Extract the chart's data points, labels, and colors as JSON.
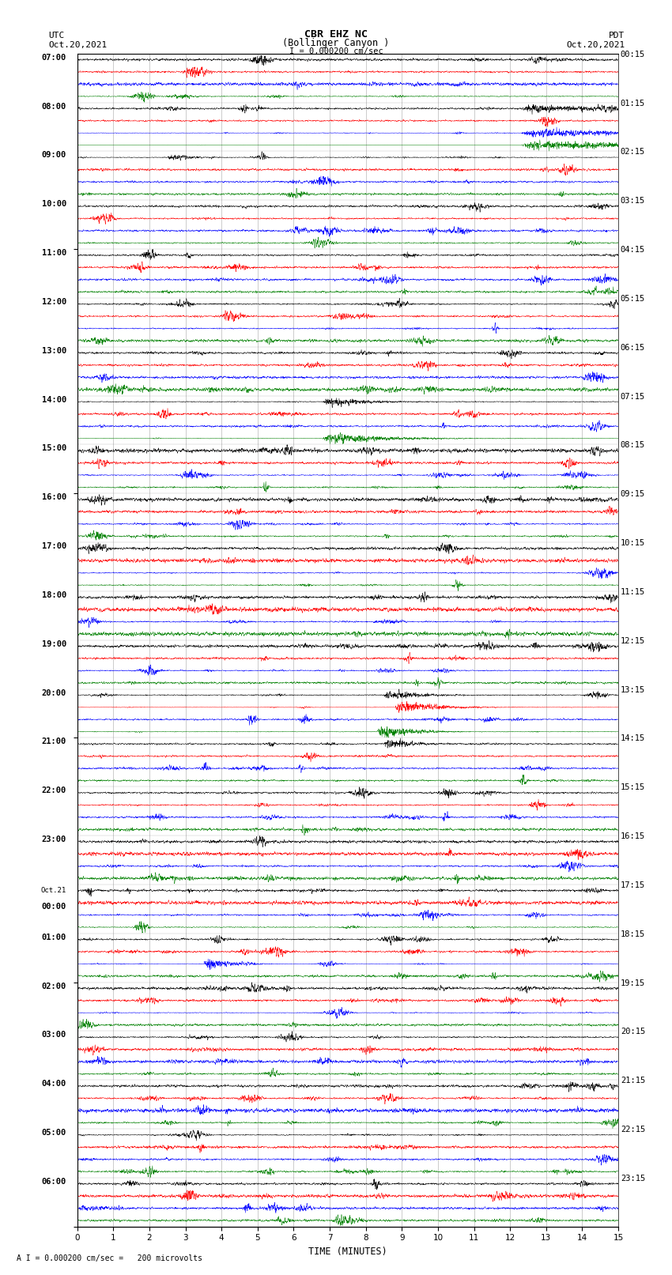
{
  "title_line1": "CBR EHZ NC",
  "title_line2": "(Bollinger Canyon )",
  "scale_label": "I = 0.000200 cm/sec",
  "bottom_label": "A I = 0.000200 cm/sec =   200 microvolts",
  "xlabel": "TIME (MINUTES)",
  "utc_header1": "UTC",
  "utc_header2": "Oct.20,2021",
  "pdt_header1": "PDT",
  "pdt_header2": "Oct.20,2021",
  "utc_times": [
    "07:00",
    "08:00",
    "09:00",
    "10:00",
    "11:00",
    "12:00",
    "13:00",
    "14:00",
    "15:00",
    "16:00",
    "17:00",
    "18:00",
    "19:00",
    "20:00",
    "21:00",
    "22:00",
    "23:00",
    "Oct.21\n00:00",
    "01:00",
    "02:00",
    "03:00",
    "04:00",
    "05:00",
    "06:00"
  ],
  "pdt_times": [
    "00:15",
    "01:15",
    "02:15",
    "03:15",
    "04:15",
    "05:15",
    "06:15",
    "07:15",
    "08:15",
    "09:15",
    "10:15",
    "11:15",
    "12:15",
    "13:15",
    "14:15",
    "15:15",
    "16:15",
    "17:15",
    "18:15",
    "19:15",
    "20:15",
    "21:15",
    "22:15",
    "23:15"
  ],
  "colors": [
    "black",
    "red",
    "blue",
    "green"
  ],
  "n_rows": 24,
  "n_traces_per_row": 4,
  "x_min": 0,
  "x_max": 15,
  "bg_color": "white",
  "seed": 12345,
  "n_pts": 3600
}
